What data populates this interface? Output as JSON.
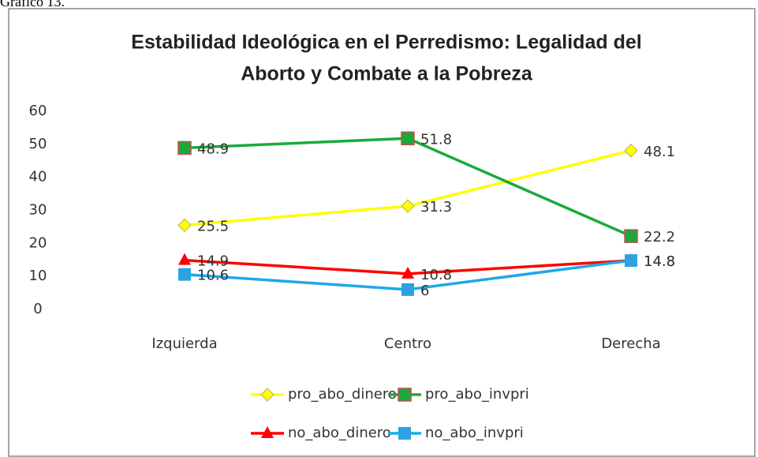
{
  "caption": "Gráfico 13.",
  "chart_data": {
    "type": "line",
    "title": [
      "Estabilidad Ideológica en el Perredismo:  Legalidad del",
      "Aborto y  Combate a la Pobreza"
    ],
    "categories": [
      "Izquierda",
      "Centro",
      "Derecha"
    ],
    "series": [
      {
        "name": "pro_abo_dinero",
        "color": "#ffff00",
        "marker": "diamond",
        "values": [
          25.5,
          31.3,
          48.1
        ]
      },
      {
        "name": "pro_abo_invpri",
        "color": "#1aaa3a",
        "marker": "square",
        "values": [
          48.9,
          51.8,
          22.2
        ]
      },
      {
        "name": "no_abo_dinero",
        "color": "#ff0000",
        "marker": "triangle",
        "values": [
          14.9,
          10.8,
          14.8
        ]
      },
      {
        "name": "no_abo_invpri",
        "color": "#1fa8e8",
        "marker": "xsquare",
        "values": [
          10.6,
          6,
          14.8
        ]
      }
    ],
    "ylim": [
      0,
      60
    ],
    "yticks": [
      0,
      10,
      20,
      30,
      40,
      50,
      60
    ],
    "grid": false
  }
}
